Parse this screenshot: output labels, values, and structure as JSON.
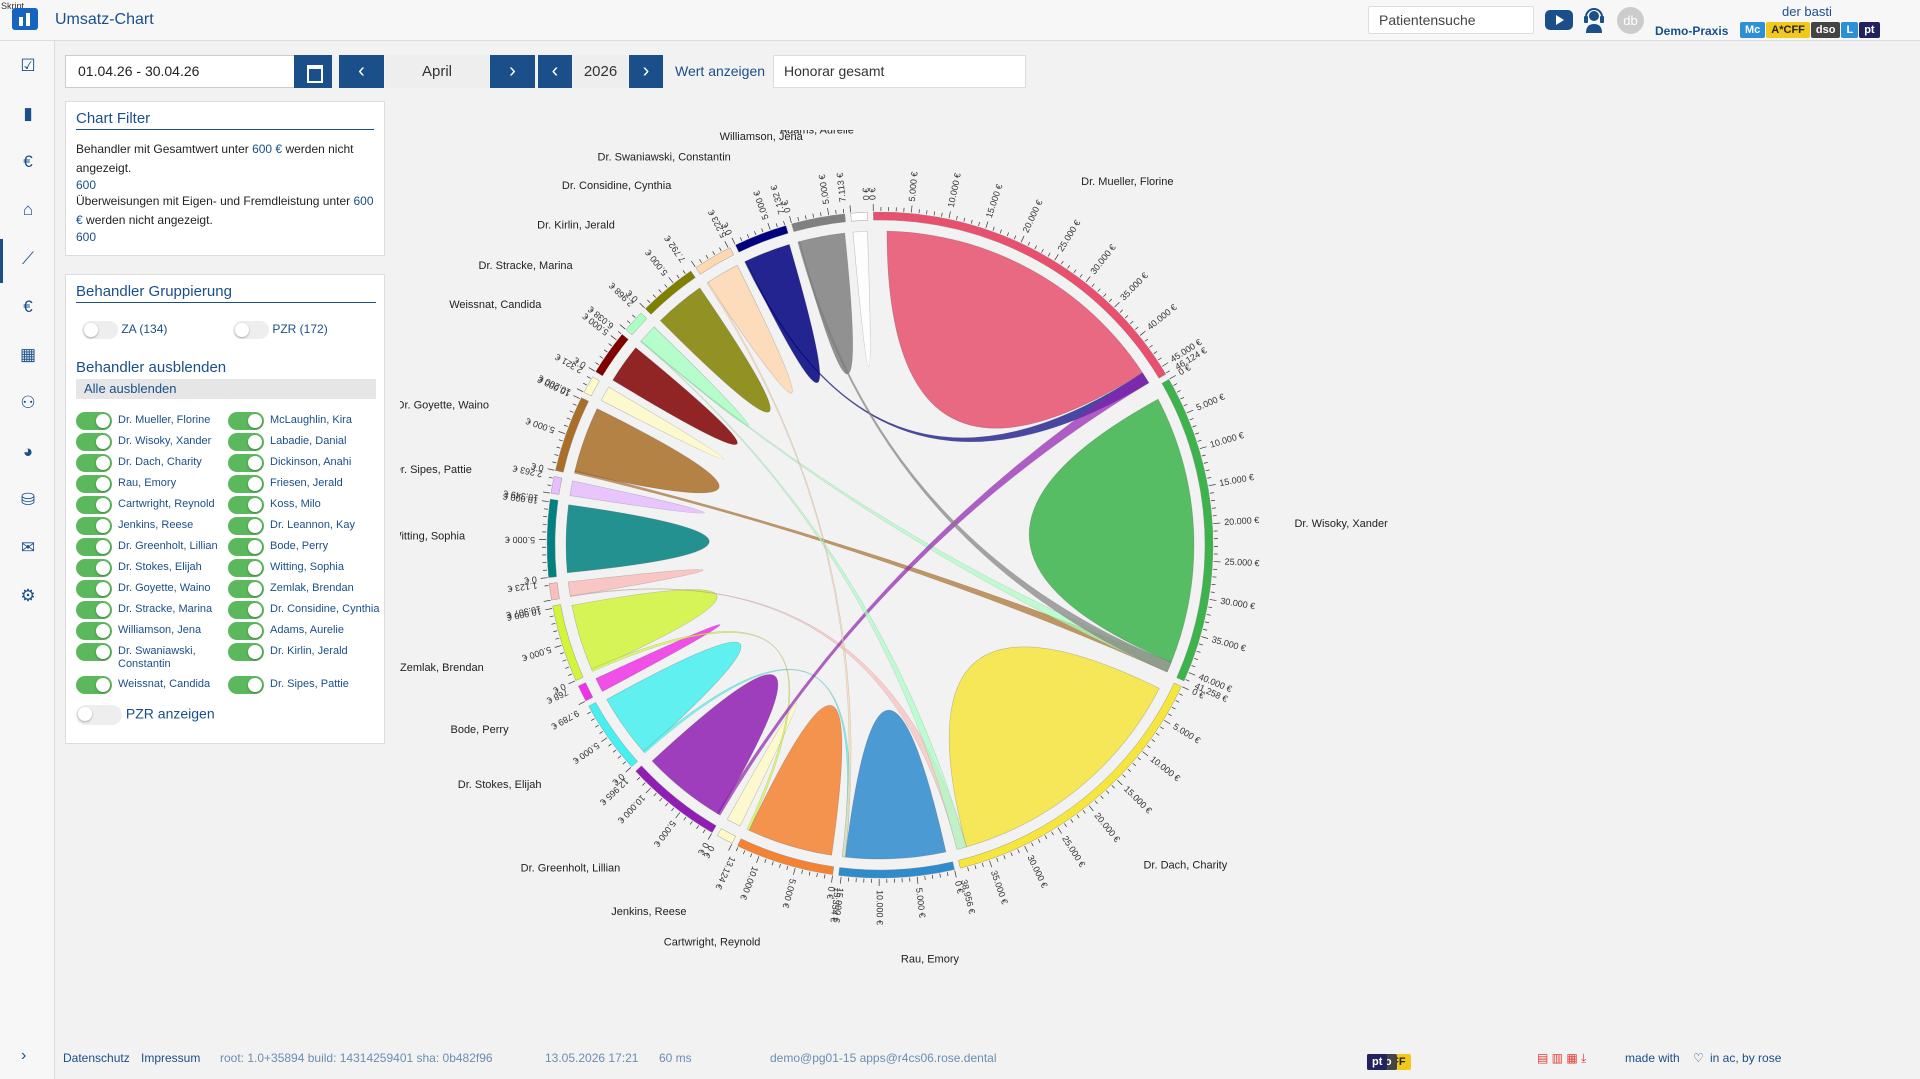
{
  "app": {
    "title": "Umsatz-Chart",
    "mini_label": "Skript"
  },
  "header": {
    "search_placeholder": "Patientensuche",
    "avatar_initials": "db",
    "user_name": "der basti",
    "practice": "Demo-Praxis",
    "badges": [
      "Mc",
      "A*CFF",
      "dso",
      "L",
      "pt"
    ]
  },
  "sidebar": {
    "icons": [
      "check-square-icon",
      "document-icon",
      "euro-icon",
      "home-icon",
      "chart-line-icon",
      "euro-icon",
      "calendar-icon",
      "users-icon",
      "pie-chart-icon",
      "database-icon",
      "mail-icon",
      "gear-icon"
    ]
  },
  "toolbar": {
    "date_range": "01.04.26 - 30.04.26",
    "month": "April",
    "year": "2026",
    "value_label": "Wert anzeigen",
    "value_select": "Honorar gesamt"
  },
  "chart_filter": {
    "title": "Chart Filter",
    "line1_pre": "Behandler mit Gesamtwert unter ",
    "line1_val": "600 €",
    "line1_post": " werden nicht angezeigt.",
    "value1": "600",
    "line2_pre": "Überweisungen mit Eigen- und Fremdleistung unter ",
    "line2_val": "600 €",
    "line2_post": " werden nicht angezeigt.",
    "value2": "600"
  },
  "grouping": {
    "title": "Behandler Gruppierung",
    "za": "ZA (134)",
    "pzr": "PZR (172)",
    "hide_title": "Behandler ausblenden",
    "hide_all": "Alle ausblenden",
    "left": [
      "Dr. Mueller, Florine",
      "Dr. Wisoky, Xander",
      "Dr. Dach, Charity",
      "Rau, Emory",
      "Cartwright, Reynold",
      "Jenkins, Reese",
      "Dr. Greenholt, Lillian",
      "Dr. Stokes, Elijah",
      "Dr. Goyette, Waino",
      "Dr. Stracke, Marina",
      "Williamson, Jena",
      "Dr. Swaniawski, Constantin",
      "Weissnat, Candida"
    ],
    "right": [
      "McLaughlin, Kira",
      "Labadie, Danial",
      "Dickinson, Anahi",
      "Friesen, Jerald",
      "Koss, Milo",
      "Dr. Leannon, Kay",
      "Bode, Perry",
      "Witting, Sophia",
      "Zemlak, Brendan",
      "Dr. Considine, Cynthia",
      "Adams, Aurelie",
      "Dr. Kirlin, Jerald",
      "Dr. Sipes, Pattie"
    ],
    "pzr_show": "PZR anzeigen"
  },
  "chart_data": {
    "type": "chord",
    "currency": "€",
    "groups": [
      {
        "name": "Dr. Mueller, Florine",
        "total": 46124,
        "color": "#e8506e"
      },
      {
        "name": "Dr. Wisoky, Xander",
        "total": 41258,
        "color": "#3cb44b"
      },
      {
        "name": "Dr. Dach, Charity",
        "total": 38956,
        "color": "#f6e53c"
      },
      {
        "name": "Rau, Emory",
        "total": 15354,
        "color": "#2e8bce"
      },
      {
        "name": "Cartwright, Reynold",
        "total": 13124,
        "color": "#f58231"
      },
      {
        "name": "Jenkins, Reese",
        "total": 0,
        "color": "#fffac8"
      },
      {
        "name": "Dr. Greenholt, Lillian",
        "total": 12965,
        "color": "#911eb4"
      },
      {
        "name": "Dr. Stokes, Elijah",
        "total": 9789,
        "color": "#46f0f0"
      },
      {
        "name": "Bode, Perry",
        "total": 768,
        "color": "#f032e6"
      },
      {
        "name": "Zemlak, Brendan",
        "total": 10307,
        "color": "#d2f53c"
      },
      {
        "name": "",
        "total": 1123,
        "color": "#fabebe"
      },
      {
        "name": "Witting, Sophia",
        "total": 10349,
        "color": "#008080"
      },
      {
        "name": "Dr. Sipes, Pattie",
        "total": 2263,
        "color": "#e6beff"
      },
      {
        "name": "Dr. Goyette, Waino",
        "total": 10200,
        "color": "#aa6e28"
      },
      {
        "name": "",
        "total": 2321,
        "color": "#fffac8"
      },
      {
        "name": "Weissnat, Candida",
        "total": 6038,
        "color": "#800000"
      },
      {
        "name": "Dr. Stracke, Marina",
        "total": 2968,
        "color": "#aaffc3"
      },
      {
        "name": "Dr. Kirlin, Jerald",
        "total": 7792,
        "color": "#808000"
      },
      {
        "name": "Dr. Considine, Cynthia",
        "total": 5223,
        "color": "#ffd8b1"
      },
      {
        "name": "Dr. Swaniawski, Constantin",
        "total": 7132,
        "color": "#000080"
      },
      {
        "name": "Williamson, Jena",
        "total": 7113,
        "color": "#808080"
      },
      {
        "name": "Adams, Aurelie",
        "total": 0,
        "color": "#ffffff"
      }
    ]
  },
  "footer": {
    "datenschutz": "Datenschutz",
    "impressum": "Impressum",
    "version": "root: 1.0+35894 build: 14314259401 sha: 0b482f96",
    "datetime": "13.05.2026 17:21",
    "latency": "60 ms",
    "db": "demo@pg01-15 apps@r4cs06.rose.dental",
    "made_with": "made with",
    "in_ac": "in ac, by rose"
  }
}
